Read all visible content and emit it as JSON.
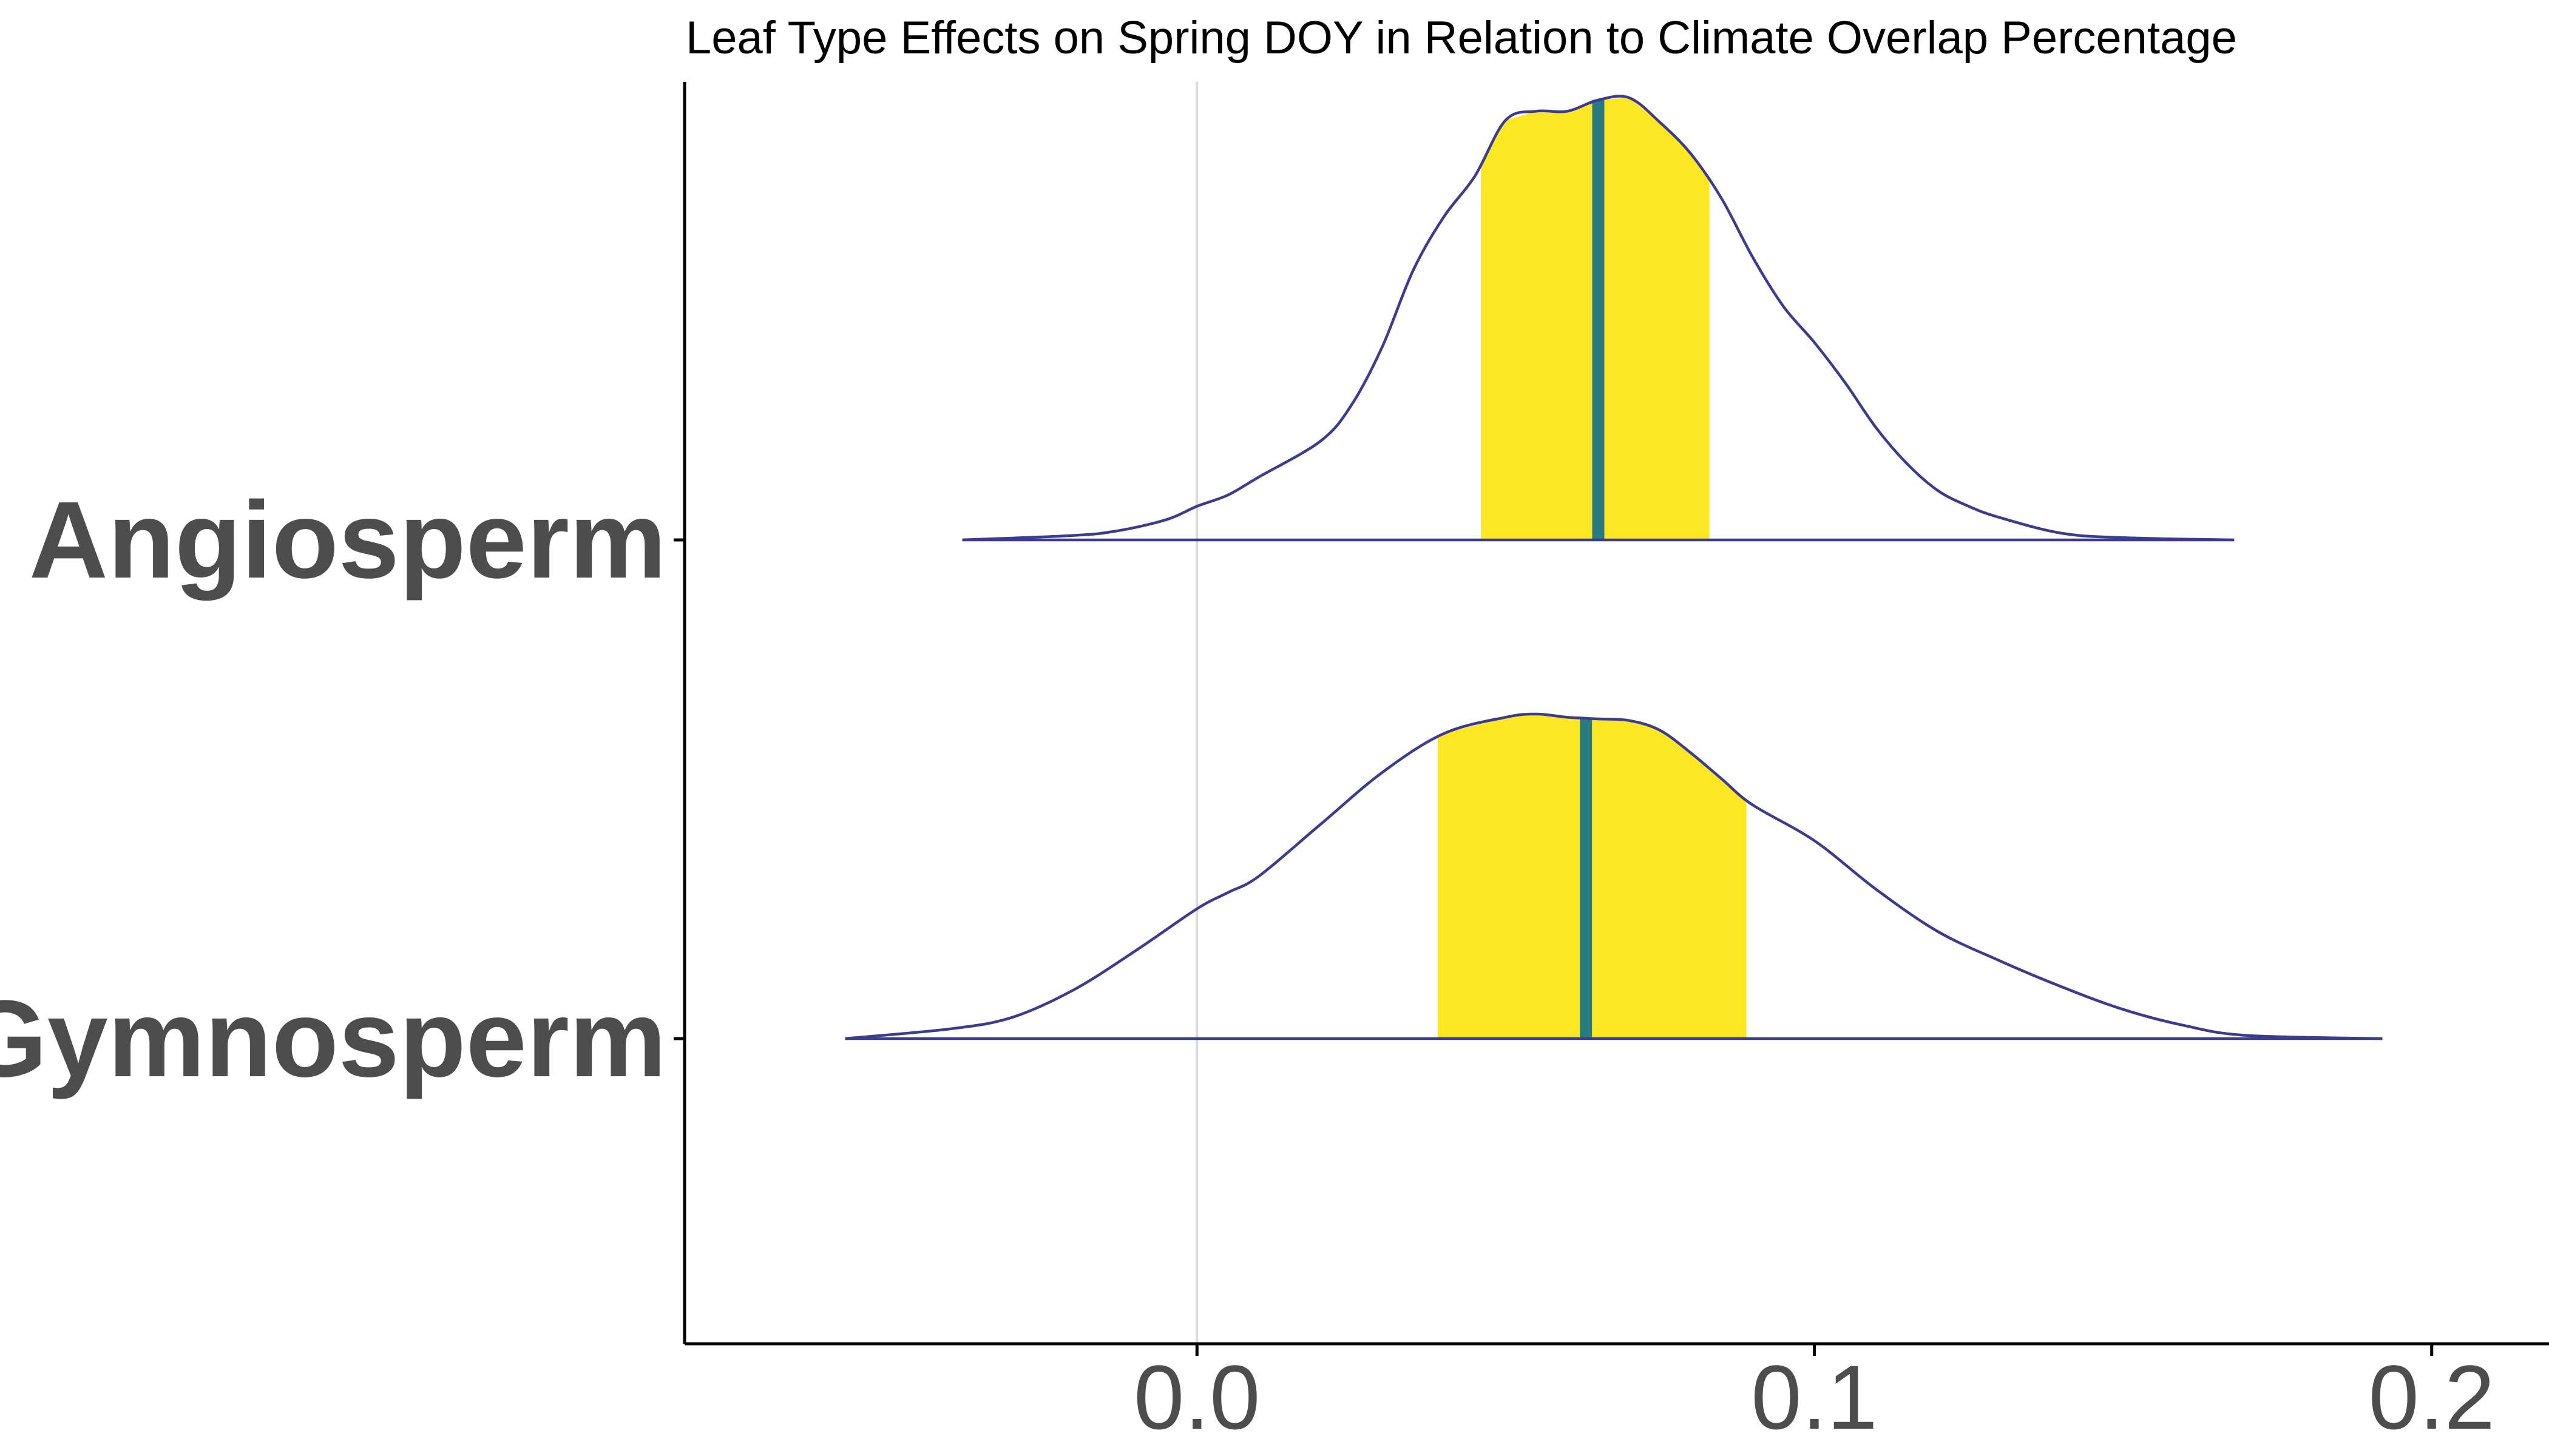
{
  "chart_data": {
    "type": "density-ridge",
    "title": "Leaf Type Effects on Spring DOY in Relation to Climate Overlap Percentage",
    "xlabel": "",
    "ylabel": "",
    "xlim": [
      -0.083,
      0.219
    ],
    "xticks": [
      "0.0",
      "0.1",
      "0.2"
    ],
    "xtick_values": [
      0.0,
      0.1,
      0.2
    ],
    "vline_at": 0.0,
    "grid": false,
    "legend": "none",
    "colors": {
      "outline": "#3b3b8f",
      "interval_fill": "#fde725",
      "median_line": "#2a7b80",
      "zero_line": "#d9d9d9",
      "axis": "#000000",
      "tick_text": "#4d4d4d"
    },
    "series": [
      {
        "name": "Angiosperm",
        "interval": [
          0.046,
          0.083
        ],
        "median": 0.065,
        "density_x": [
          -0.038,
          -0.02,
          -0.013,
          -0.005,
          0.0,
          0.005,
          0.01,
          0.02,
          0.025,
          0.03,
          0.035,
          0.04,
          0.045,
          0.05,
          0.055,
          0.06,
          0.065,
          0.07,
          0.075,
          0.08,
          0.085,
          0.09,
          0.095,
          0.1,
          0.105,
          0.11,
          0.115,
          0.12,
          0.125,
          0.13,
          0.14,
          0.15,
          0.168
        ],
        "density_y": [
          0.0,
          0.01,
          0.02,
          0.045,
          0.075,
          0.1,
          0.14,
          0.22,
          0.3,
          0.43,
          0.6,
          0.72,
          0.81,
          0.935,
          0.955,
          0.955,
          0.98,
          0.985,
          0.93,
          0.86,
          0.76,
          0.63,
          0.52,
          0.44,
          0.35,
          0.25,
          0.17,
          0.11,
          0.075,
          0.05,
          0.015,
          0.005,
          0.0
        ]
      },
      {
        "name": "Gymnosperm",
        "interval": [
          0.039,
          0.089
        ],
        "median": 0.063,
        "density_x": [
          -0.057,
          -0.04,
          -0.03,
          -0.02,
          -0.01,
          0.0,
          0.005,
          0.01,
          0.02,
          0.03,
          0.04,
          0.05,
          0.055,
          0.06,
          0.065,
          0.07,
          0.075,
          0.08,
          0.085,
          0.09,
          0.1,
          0.11,
          0.12,
          0.13,
          0.14,
          0.15,
          0.16,
          0.17,
          0.192
        ],
        "density_y": [
          0.0,
          0.03,
          0.065,
          0.15,
          0.27,
          0.4,
          0.45,
          0.5,
          0.66,
          0.82,
          0.94,
          0.99,
          1.0,
          0.99,
          0.985,
          0.98,
          0.95,
          0.88,
          0.8,
          0.72,
          0.61,
          0.46,
          0.33,
          0.24,
          0.16,
          0.09,
          0.04,
          0.01,
          0.0
        ]
      }
    ]
  }
}
